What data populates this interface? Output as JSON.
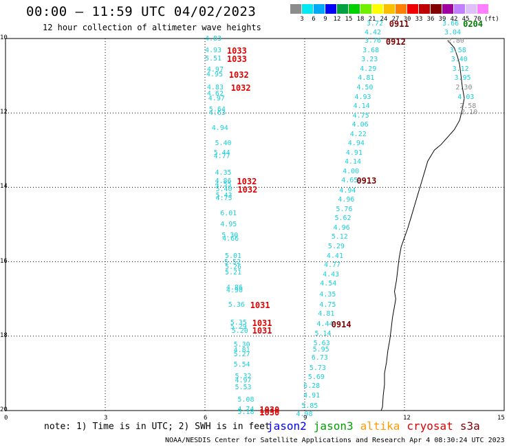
{
  "header": {
    "title": "00:00 – 11:59 UTC 04/02/2023",
    "subtitle": "12 hour collection of altimeter wave heights"
  },
  "scale": {
    "colors": [
      "#8c8c8c",
      "#00e8f0",
      "#00a8f8",
      "#0000ff",
      "#00a040",
      "#00d000",
      "#70f000",
      "#ffff00",
      "#f8c000",
      "#ff8000",
      "#f00000",
      "#c00000",
      "#800000",
      "#a000a0",
      "#c080ff",
      "#e0c0f8",
      "#ff80ff"
    ],
    "labels": [
      "3",
      "6",
      "9",
      "12",
      "15",
      "18",
      "21",
      "24",
      "27",
      "30",
      "33",
      "36",
      "39",
      "42",
      "45",
      "70"
    ],
    "unit": "(ft)"
  },
  "axes": {
    "y_ticks": [
      "10",
      "12",
      "14",
      "16",
      "18",
      "20"
    ],
    "x_ticks": [
      "0",
      "3",
      "6",
      "9",
      "12",
      "15"
    ],
    "x_range": [
      0,
      15
    ],
    "y_range": [
      -20,
      -10
    ]
  },
  "wave_heights": [
    {
      "text": "4.83",
      "x": 6.0,
      "y": -10.01,
      "c": "cyan"
    },
    {
      "text": "4.93",
      "x": 6.0,
      "y": -10.33,
      "c": "cyan"
    },
    {
      "text": "5.51",
      "x": 6.0,
      "y": -10.55,
      "c": "cyan"
    },
    {
      "text": "4.97",
      "x": 6.06,
      "y": -10.85,
      "c": "cyan"
    },
    {
      "text": "4.95",
      "x": 6.04,
      "y": -10.97,
      "c": "cyan"
    },
    {
      "text": "4.83",
      "x": 6.06,
      "y": -11.33,
      "c": "cyan"
    },
    {
      "text": "4.62",
      "x": 6.06,
      "y": -11.5,
      "c": "cyan"
    },
    {
      "text": "4.97",
      "x": 6.1,
      "y": -11.62,
      "c": "cyan"
    },
    {
      "text": "5.64",
      "x": 6.12,
      "y": -11.92,
      "c": "cyan"
    },
    {
      "text": "4.63",
      "x": 6.12,
      "y": -12.02,
      "c": "cyan"
    },
    {
      "text": "4.94",
      "x": 6.2,
      "y": -12.42,
      "c": "cyan"
    },
    {
      "text": "5.40",
      "x": 6.3,
      "y": -12.83,
      "c": "cyan"
    },
    {
      "text": "5.44",
      "x": 6.26,
      "y": -13.08,
      "c": "cyan"
    },
    {
      "text": "4.77",
      "x": 6.26,
      "y": -13.18,
      "c": "cyan"
    },
    {
      "text": "4.35",
      "x": 6.3,
      "y": -13.62,
      "c": "cyan"
    },
    {
      "text": "4.86",
      "x": 6.3,
      "y": -13.85,
      "c": "cyan"
    },
    {
      "text": "4.55",
      "x": 6.3,
      "y": -13.93,
      "c": "cyan"
    },
    {
      "text": "5.40",
      "x": 6.32,
      "y": -14.07,
      "c": "cyan"
    },
    {
      "text": "5.43",
      "x": 6.32,
      "y": -14.23,
      "c": "cyan"
    },
    {
      "text": "4.75",
      "x": 6.32,
      "y": -14.3,
      "c": "cyan"
    },
    {
      "text": "6.01",
      "x": 6.46,
      "y": -14.72,
      "c": "cyan"
    },
    {
      "text": "4.95",
      "x": 6.46,
      "y": -15.0,
      "c": "cyan"
    },
    {
      "text": "5.30",
      "x": 6.5,
      "y": -15.3,
      "c": "cyan"
    },
    {
      "text": "4.66",
      "x": 6.52,
      "y": -15.4,
      "c": "cyan"
    },
    {
      "text": "5.01",
      "x": 6.6,
      "y": -15.85,
      "c": "cyan"
    },
    {
      "text": "5.52",
      "x": 6.58,
      "y": -16.02,
      "c": "cyan"
    },
    {
      "text": "5.26",
      "x": 6.6,
      "y": -16.15,
      "c": "cyan"
    },
    {
      "text": "5.21",
      "x": 6.6,
      "y": -16.3,
      "c": "cyan"
    },
    {
      "text": "4.86",
      "x": 6.64,
      "y": -16.7,
      "c": "cyan"
    },
    {
      "text": "4.90",
      "x": 6.64,
      "y": -16.78,
      "c": "cyan"
    },
    {
      "text": "5.36",
      "x": 6.7,
      "y": -17.18,
      "c": "cyan"
    },
    {
      "text": "5.35",
      "x": 6.76,
      "y": -17.65,
      "c": "cyan"
    },
    {
      "text": "5.29",
      "x": 6.76,
      "y": -17.76,
      "c": "cyan"
    },
    {
      "text": "5.20",
      "x": 6.8,
      "y": -17.87,
      "c": "cyan"
    },
    {
      "text": "5.30",
      "x": 6.86,
      "y": -18.24,
      "c": "cyan"
    },
    {
      "text": "4.81",
      "x": 6.86,
      "y": -18.4,
      "c": "cyan"
    },
    {
      "text": "5.27",
      "x": 6.86,
      "y": -18.5,
      "c": "cyan"
    },
    {
      "text": "5.54",
      "x": 6.86,
      "y": -18.77,
      "c": "cyan"
    },
    {
      "text": "5.32",
      "x": 6.9,
      "y": -19.1,
      "c": "cyan"
    },
    {
      "text": "4.97",
      "x": 6.9,
      "y": -19.2,
      "c": "cyan"
    },
    {
      "text": "5.53",
      "x": 6.9,
      "y": -19.38,
      "c": "cyan"
    },
    {
      "text": "5.08",
      "x": 6.98,
      "y": -19.73,
      "c": "cyan"
    },
    {
      "text": "4.74",
      "x": 6.98,
      "y": -19.98,
      "c": "cyan"
    },
    {
      "text": "5.18",
      "x": 6.98,
      "y": -20.05,
      "c": "cyan"
    },
    {
      "text": "4.98",
      "x": 8.74,
      "y": -20.11,
      "c": "cyan"
    },
    {
      "text": "5.85",
      "x": 8.9,
      "y": -19.88,
      "c": "cyan"
    },
    {
      "text": "4.91",
      "x": 8.96,
      "y": -19.62,
      "c": "cyan"
    },
    {
      "text": "6.28",
      "x": 8.96,
      "y": -19.35,
      "c": "cyan"
    },
    {
      "text": "5.69",
      "x": 9.1,
      "y": -19.12,
      "c": "cyan"
    },
    {
      "text": "5.73",
      "x": 9.14,
      "y": -18.88,
      "c": "cyan"
    },
    {
      "text": "6.73",
      "x": 9.2,
      "y": -18.6,
      "c": "cyan"
    },
    {
      "text": "5.95",
      "x": 9.24,
      "y": -18.38,
      "c": "cyan"
    },
    {
      "text": "5.63",
      "x": 9.26,
      "y": -18.2,
      "c": "cyan"
    },
    {
      "text": "5.14",
      "x": 9.3,
      "y": -17.95,
      "c": "cyan"
    },
    {
      "text": "4.44",
      "x": 9.36,
      "y": -17.68,
      "c": "cyan"
    },
    {
      "text": "4.81",
      "x": 9.4,
      "y": -17.42,
      "c": "cyan"
    },
    {
      "text": "4.75",
      "x": 9.44,
      "y": -17.18,
      "c": "cyan"
    },
    {
      "text": "4.35",
      "x": 9.44,
      "y": -16.9,
      "c": "cyan"
    },
    {
      "text": "4.54",
      "x": 9.46,
      "y": -16.6,
      "c": "cyan"
    },
    {
      "text": "4.43",
      "x": 9.54,
      "y": -16.36,
      "c": "cyan"
    },
    {
      "text": "4.77",
      "x": 9.58,
      "y": -16.1,
      "c": "cyan"
    },
    {
      "text": "4.41",
      "x": 9.66,
      "y": -15.85,
      "c": "cyan"
    },
    {
      "text": "5.29",
      "x": 9.7,
      "y": -15.6,
      "c": "cyan"
    },
    {
      "text": "5.12",
      "x": 9.8,
      "y": -15.35,
      "c": "cyan"
    },
    {
      "text": "4.96",
      "x": 9.86,
      "y": -15.1,
      "c": "cyan"
    },
    {
      "text": "5.62",
      "x": 9.9,
      "y": -14.85,
      "c": "cyan"
    },
    {
      "text": "5.76",
      "x": 9.94,
      "y": -14.6,
      "c": "cyan"
    },
    {
      "text": "4.96",
      "x": 10.0,
      "y": -14.35,
      "c": "cyan"
    },
    {
      "text": "4.94",
      "x": 10.04,
      "y": -14.1,
      "c": "cyan"
    },
    {
      "text": "4.65",
      "x": 10.1,
      "y": -13.83,
      "c": "cyan"
    },
    {
      "text": "4.00",
      "x": 10.14,
      "y": -13.58,
      "c": "cyan"
    },
    {
      "text": "4.14",
      "x": 10.2,
      "y": -13.33,
      "c": "cyan"
    },
    {
      "text": "4.91",
      "x": 10.24,
      "y": -13.08,
      "c": "cyan"
    },
    {
      "text": "4.94",
      "x": 10.3,
      "y": -12.83,
      "c": "cyan"
    },
    {
      "text": "4.22",
      "x": 10.36,
      "y": -12.58,
      "c": "cyan"
    },
    {
      "text": "4.06",
      "x": 10.42,
      "y": -12.33,
      "c": "cyan"
    },
    {
      "text": "4.75",
      "x": 10.44,
      "y": -12.08,
      "c": "cyan"
    },
    {
      "text": "4.14",
      "x": 10.46,
      "y": -11.83,
      "c": "cyan"
    },
    {
      "text": "4.93",
      "x": 10.5,
      "y": -11.58,
      "c": "cyan"
    },
    {
      "text": "4.50",
      "x": 10.56,
      "y": -11.33,
      "c": "cyan"
    },
    {
      "text": "4.81",
      "x": 10.6,
      "y": -11.08,
      "c": "cyan"
    },
    {
      "text": "4.29",
      "x": 10.66,
      "y": -10.83,
      "c": "cyan"
    },
    {
      "text": "3.23",
      "x": 10.7,
      "y": -10.58,
      "c": "cyan"
    },
    {
      "text": "3.68",
      "x": 10.74,
      "y": -10.33,
      "c": "cyan"
    },
    {
      "text": "3.76",
      "x": 10.8,
      "y": -10.08,
      "c": "cyan"
    },
    {
      "text": "4.42",
      "x": 10.8,
      "y": -9.85,
      "c": "cyan"
    },
    {
      "text": "3.72",
      "x": 10.86,
      "y": -9.62,
      "c": "cyan"
    },
    {
      "text": "3.66",
      "x": 13.14,
      "y": -9.62,
      "c": "cyan"
    },
    {
      "text": "3.04",
      "x": 13.2,
      "y": -9.85,
      "c": "cyan"
    },
    {
      "text": "2.80",
      "x": 13.3,
      "y": -10.08,
      "c": "gray"
    },
    {
      "text": "3.58",
      "x": 13.36,
      "y": -10.33,
      "c": "cyan"
    },
    {
      "text": "3.40",
      "x": 13.4,
      "y": -10.58,
      "c": "cyan"
    },
    {
      "text": "3.12",
      "x": 13.44,
      "y": -10.83,
      "c": "cyan"
    },
    {
      "text": "3.95",
      "x": 13.5,
      "y": -11.08,
      "c": "cyan"
    },
    {
      "text": "2.30",
      "x": 13.54,
      "y": -11.33,
      "c": "gray"
    },
    {
      "text": "4.03",
      "x": 13.6,
      "y": -11.58,
      "c": "cyan"
    },
    {
      "text": "2.58",
      "x": 13.66,
      "y": -11.83,
      "c": "gray"
    },
    {
      "text": "2.10",
      "x": 13.7,
      "y": -12.0,
      "c": "gray"
    }
  ],
  "time_labels": [
    {
      "text": "0911",
      "x": 11.54,
      "y": -9.62,
      "c": "maroon"
    },
    {
      "text": "0912",
      "x": 11.44,
      "y": -10.1,
      "c": "maroon"
    },
    {
      "text": "1033",
      "x": 6.66,
      "y": -10.33,
      "c": "red"
    },
    {
      "text": "1033",
      "x": 6.66,
      "y": -10.55,
      "c": "red"
    },
    {
      "text": "1032",
      "x": 6.72,
      "y": -10.97,
      "c": "red"
    },
    {
      "text": "1032",
      "x": 6.78,
      "y": -11.33,
      "c": "red"
    },
    {
      "text": "1032",
      "x": 6.96,
      "y": -13.85,
      "c": "red"
    },
    {
      "text": "1032",
      "x": 6.98,
      "y": -14.07,
      "c": "red"
    },
    {
      "text": "0913",
      "x": 10.56,
      "y": -13.83,
      "c": "maroon"
    },
    {
      "text": "1031",
      "x": 7.36,
      "y": -17.18,
      "c": "red"
    },
    {
      "text": "0914",
      "x": 9.8,
      "y": -17.68,
      "c": "maroon"
    },
    {
      "text": "1031",
      "x": 7.42,
      "y": -17.65,
      "c": "red"
    },
    {
      "text": "1031",
      "x": 7.42,
      "y": -17.85,
      "c": "red"
    },
    {
      "text": "1030",
      "x": 7.64,
      "y": -19.98,
      "c": "red"
    },
    {
      "text": "1030",
      "x": 7.64,
      "y": -20.05,
      "c": "red"
    },
    {
      "text": "0204",
      "x": 13.76,
      "y": -9.62,
      "c": "green"
    }
  ],
  "coastline": [
    [
      13.3,
      -10.05
    ],
    [
      13.5,
      -10.25
    ],
    [
      13.6,
      -10.5
    ],
    [
      13.66,
      -10.7
    ],
    [
      13.7,
      -11.0
    ],
    [
      13.74,
      -11.3
    ],
    [
      13.8,
      -11.6
    ],
    [
      13.74,
      -11.9
    ],
    [
      13.66,
      -12.2
    ],
    [
      13.5,
      -12.45
    ],
    [
      13.3,
      -12.65
    ],
    [
      13.1,
      -12.85
    ],
    [
      12.9,
      -13.0
    ],
    [
      12.7,
      -13.3
    ],
    [
      12.6,
      -13.6
    ],
    [
      12.5,
      -13.9
    ],
    [
      12.4,
      -14.2
    ],
    [
      12.3,
      -14.5
    ],
    [
      12.2,
      -14.8
    ],
    [
      12.1,
      -15.1
    ],
    [
      12.0,
      -15.35
    ],
    [
      11.9,
      -15.6
    ],
    [
      11.84,
      -15.9
    ],
    [
      11.8,
      -16.2
    ],
    [
      11.76,
      -16.5
    ],
    [
      11.7,
      -16.8
    ],
    [
      11.74,
      -17.0
    ],
    [
      11.7,
      -17.2
    ],
    [
      11.64,
      -17.5
    ],
    [
      11.6,
      -17.8
    ],
    [
      11.56,
      -18.1
    ],
    [
      11.5,
      -18.4
    ],
    [
      11.46,
      -18.7
    ],
    [
      11.4,
      -19.0
    ],
    [
      11.4,
      -19.3
    ],
    [
      11.36,
      -19.6
    ],
    [
      11.34,
      -19.9
    ],
    [
      11.3,
      -20.0
    ]
  ],
  "note": "note: 1) Time is in UTC; 2) SWH is in feet",
  "legend": [
    {
      "label": "jason2",
      "color": "#0000ff"
    },
    {
      "label": "jason3",
      "color": "#00a000"
    },
    {
      "label": "altika",
      "color": "#ff9900"
    },
    {
      "label": "cryosat",
      "color": "#e00000"
    },
    {
      "label": "s3a",
      "color": "#800000"
    }
  ],
  "credit": "NOAA/NESDIS Center for Satellite Applications and Research   Apr  4 08:30:24 UTC 2023"
}
